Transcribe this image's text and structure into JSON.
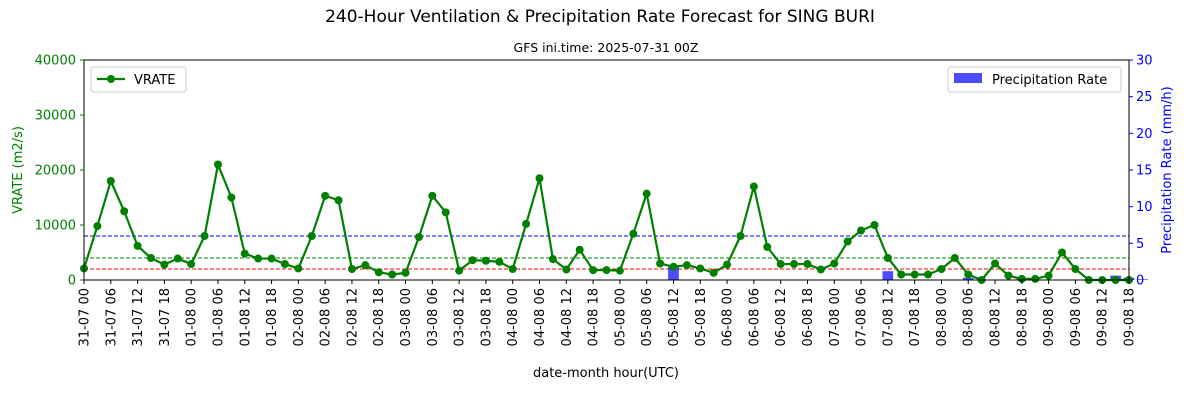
{
  "chart_data": {
    "type": "line",
    "title": "240-Hour Ventilation & Precipitation Rate Forecast for SING BURI",
    "subtitle": "GFS ini.time: 2025-07-31 00Z",
    "xlabel": "date-month hour(UTC)",
    "ylabel_left": "VRATE (m2/s)",
    "ylabel_right": "Precipitation Rate (mm/h)",
    "ylim_left": [
      0,
      40000
    ],
    "ylim_right": [
      0,
      30
    ],
    "yticks_left": [
      "0",
      "10000",
      "20000",
      "30000",
      "40000"
    ],
    "yticks_right": [
      "0",
      "5",
      "10",
      "15",
      "20",
      "25",
      "30"
    ],
    "x_ticks": [
      "31-07 00",
      "31-07 06",
      "31-07 12",
      "31-07 18",
      "01-08 00",
      "01-08 06",
      "01-08 12",
      "01-08 18",
      "02-08 00",
      "02-08 06",
      "02-08 12",
      "02-08 18",
      "03-08 00",
      "03-08 06",
      "03-08 12",
      "03-08 18",
      "04-08 00",
      "04-08 06",
      "04-08 12",
      "04-08 18",
      "05-08 00",
      "05-08 06",
      "05-08 12",
      "05-08 18",
      "06-08 00",
      "06-08 06",
      "06-08 12",
      "06-08 18",
      "07-08 00",
      "07-08 06",
      "07-08 12",
      "07-08 18",
      "08-08 00",
      "08-08 06",
      "08-08 12",
      "08-08 18",
      "09-08 00",
      "09-08 06",
      "09-08 12",
      "09-08 18"
    ],
    "legend_left": "top-left",
    "legend_right": "top-right",
    "series": [
      {
        "name": "VRATE",
        "axis": "left",
        "color": "#008000",
        "values": [
          2100,
          9800,
          18000,
          12500,
          6200,
          4000,
          2800,
          3900,
          2900,
          8000,
          21000,
          15000,
          4800,
          3900,
          3900,
          2900,
          2100,
          8000,
          15300,
          14500,
          2000,
          2700,
          1400,
          1000,
          1300,
          7800,
          15300,
          12300,
          1700,
          3600,
          3500,
          3300,
          2000,
          10200,
          18500,
          3800,
          1900,
          5500,
          1800,
          1800,
          1700,
          8400,
          15700,
          3000,
          2400,
          2700,
          2100,
          1300,
          2800,
          8000,
          17000,
          6000,
          2900,
          2900,
          2900,
          1900,
          3000,
          7000,
          9000,
          10000,
          4000,
          1000,
          1000,
          1000,
          2000,
          4000,
          1000,
          0,
          3000,
          800,
          200,
          200,
          800,
          5000,
          2000,
          0,
          0,
          0,
          0
        ]
      },
      {
        "name": "Precipitation Rate",
        "axis": "right",
        "type": "bar",
        "color": "#0000ff",
        "values": [
          0,
          0,
          0,
          0,
          0,
          0,
          0,
          0,
          0,
          0,
          0,
          0,
          0,
          0,
          0,
          0,
          0,
          0,
          0,
          0,
          0,
          0,
          0,
          0,
          0,
          0,
          0,
          0,
          0,
          0,
          0,
          0,
          0,
          0,
          0,
          0,
          0,
          0,
          0,
          0,
          0,
          0,
          0,
          0,
          1.8,
          0,
          0,
          0,
          0,
          0,
          0,
          0,
          0,
          0,
          0,
          0,
          0,
          0,
          0,
          0,
          1.2,
          0,
          0,
          0,
          0,
          0,
          0.3,
          0,
          0,
          0,
          0.2,
          0,
          0,
          0,
          0,
          0,
          0,
          0.6,
          0.3,
          0.1
        ]
      }
    ],
    "reference_lines": [
      {
        "axis": "left",
        "value": 2000,
        "color": "#ff0000"
      },
      {
        "axis": "left",
        "value": 4000,
        "color": "#008000"
      },
      {
        "axis": "left",
        "value": 8000,
        "color": "#0000ff"
      }
    ],
    "grid": false
  }
}
